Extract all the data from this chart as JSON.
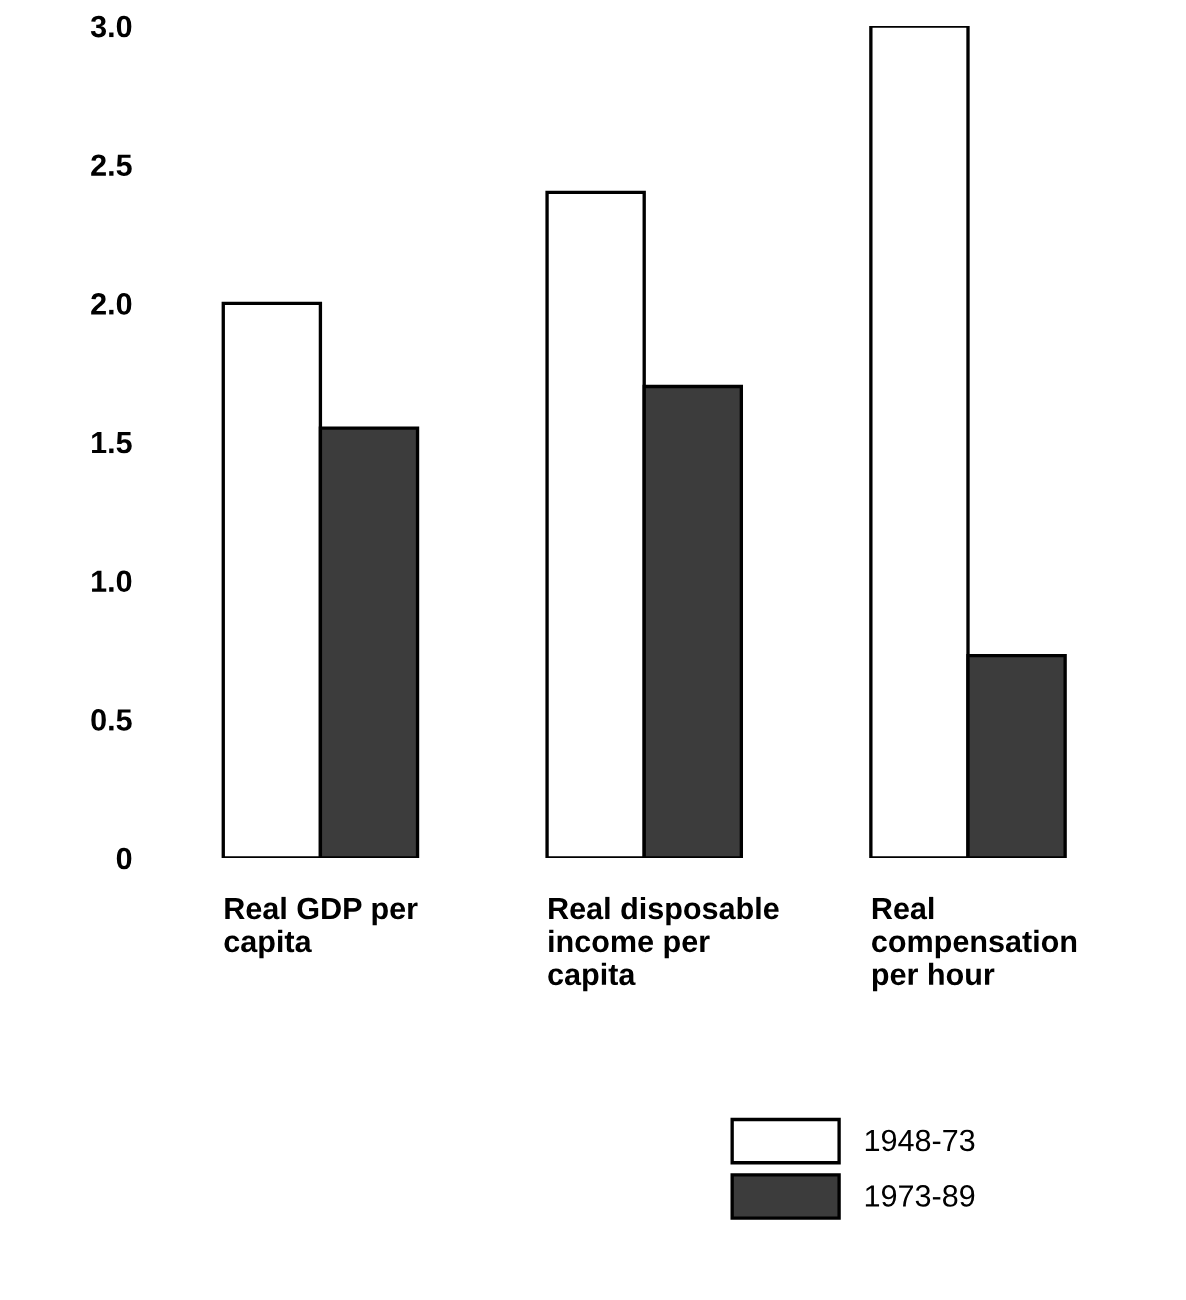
{
  "chart_data": {
    "type": "bar",
    "categories": [
      "Real GDP per\ncapita",
      "Real disposable\nincome per\ncapita",
      "Real\ncompensation\nper hour"
    ],
    "series": [
      {
        "name": "1948-73",
        "color": "#ffffff",
        "values": [
          2.0,
          2.4,
          3.0
        ]
      },
      {
        "name": "1973-89",
        "color": "#3c3c3c",
        "values": [
          1.55,
          1.7,
          0.73
        ]
      }
    ],
    "ylim": [
      0,
      3.0
    ],
    "yticks": [
      0,
      0.5,
      {
        "value": 1,
        "label": "1.0"
      },
      1.5,
      {
        "value": 2,
        "label": "2.0"
      },
      2.5,
      {
        "value": 3,
        "label": "3.0"
      }
    ],
    "grid": false,
    "legend": "bottom"
  }
}
